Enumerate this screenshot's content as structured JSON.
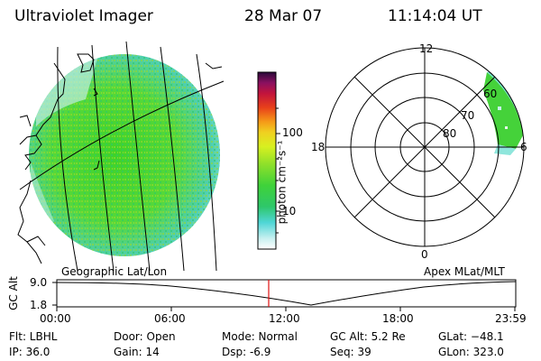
{
  "header": {
    "instrument": "Ultraviolet Imager",
    "date": "28 Mar 07",
    "time": "11:14:04 UT"
  },
  "colorbar": {
    "unit_label": "photon cm⁻²s⁻¹",
    "ticks": [
      "100",
      "10"
    ]
  },
  "left_panel": {
    "label": "Geographic Lat/Lon"
  },
  "polar_plot": {
    "label": "Apex MLat/MLT",
    "mlt_labels": {
      "top": "12",
      "right": "6",
      "bottom": "0",
      "left": "18"
    },
    "lat_labels": [
      "60",
      "70",
      "80"
    ]
  },
  "timeline": {
    "ylabel": "GC Alt",
    "ytick_top": "9.0",
    "ytick_bottom": "1.8",
    "xticks": [
      "00:00",
      "06:00",
      "12:00",
      "18:00",
      "23:59"
    ],
    "marker_time": "11:14"
  },
  "info": {
    "flt": "Flt: LBHL",
    "ip": "IP: 36.0",
    "door": "Door: Open",
    "gain": "Gain: 14",
    "mode": "Mode: Normal",
    "dsp": "Dsp:    -6.9",
    "gc_alt": "GC Alt: 5.2 Re",
    "seq": "Seq: 39",
    "glat": "GLat: −48.1",
    "glon": "GLon: 323.0"
  }
}
